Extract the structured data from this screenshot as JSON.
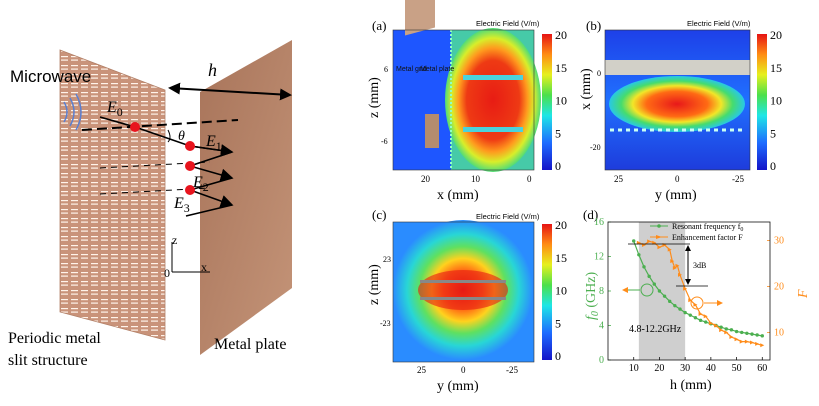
{
  "schematic": {
    "microwave_label": "Microwave",
    "h_label": "h",
    "e0": "E",
    "e0_sub": "0",
    "e1": "E",
    "e1_sub": "1",
    "e2": "E",
    "e2_sub": "2",
    "e3": "E",
    "e3_sub": "3",
    "theta": "θ",
    "axis_z": "z",
    "axis_x": "x",
    "origin": "0",
    "periodic_label_1": "Periodic metal",
    "periodic_label_2": "slit structure",
    "metal_plate_label": "Metal plate"
  },
  "panel_a": {
    "tag": "(a)",
    "colorbar_title": "Electric Field (V/m)",
    "colorbar_ticks": [
      "20",
      "15",
      "10",
      "5",
      "0"
    ],
    "ylabel": "z (mm)",
    "yticks": [
      "6",
      "-6"
    ],
    "xlabel": "x (mm)",
    "xticks": [
      "20",
      "10",
      "0"
    ],
    "inset_metal_grid": "Metal grid",
    "inset_metal_plate": "Metal plate"
  },
  "panel_b": {
    "tag": "(b)",
    "colorbar_title": "Electric Field (V/m)",
    "colorbar_ticks": [
      "20",
      "15",
      "10",
      "5",
      "0"
    ],
    "ylabel": "x (mm)",
    "yticks": [
      "0",
      "-20"
    ],
    "xlabel": "y (mm)",
    "xticks": [
      "25",
      "0",
      "-25"
    ]
  },
  "panel_c": {
    "tag": "(c)",
    "colorbar_title": "Electric Field (V/m)",
    "colorbar_ticks": [
      "20",
      "15",
      "10",
      "5",
      "0"
    ],
    "ylabel": "z (mm)",
    "yticks": [
      "23",
      "-23"
    ],
    "xlabel": "y (mm)",
    "xticks": [
      "25",
      "0",
      "-25"
    ]
  },
  "panel_d": {
    "tag": "(d)",
    "legend_1": "Resonant frequency f",
    "legend_1_sub": "0",
    "legend_2": "Enhancement factor F",
    "ylabel_left": "f",
    "ylabel_left_sub": "0",
    "ylabel_left_unit": " (GHz)",
    "ylabel_right": "F",
    "xlabel": "h (mm)",
    "annot_3db": "3dB",
    "annot_band": "4.8-12.2GHz"
  },
  "colors": {
    "plate": "#b98a6e",
    "freq_series": "#4caf50",
    "factor_series": "#ff8c1a",
    "shade": "#cfcfcf"
  },
  "chart_data": {
    "type": "line",
    "xlabel": "h (mm)",
    "ylabel_left": "f0 (GHz)",
    "ylabel_right": "F",
    "xlim": [
      0,
      63
    ],
    "ylim_left": [
      0,
      16
    ],
    "ylim_right": [
      4,
      34
    ],
    "xticks": [
      10,
      20,
      30,
      40,
      50,
      60
    ],
    "yticks_left": [
      0,
      4,
      8,
      12,
      16
    ],
    "yticks_right": [
      10,
      20,
      30
    ],
    "shaded_x": [
      12,
      30
    ],
    "series": [
      {
        "name": "Resonant frequency f0",
        "axis": "left",
        "x": [
          10,
          12,
          14,
          16,
          18,
          20,
          22,
          24,
          26,
          28,
          30,
          32,
          34,
          36,
          38,
          40,
          42,
          44,
          46,
          48,
          50,
          52,
          54,
          56,
          58,
          60
        ],
        "values": [
          13.8,
          12.2,
          10.8,
          9.7,
          8.8,
          8.0,
          7.4,
          6.8,
          6.3,
          5.9,
          5.5,
          5.2,
          4.9,
          4.6,
          4.4,
          4.2,
          4.0,
          3.8,
          3.6,
          3.5,
          3.3,
          3.2,
          3.1,
          3.0,
          2.9,
          2.8
        ]
      },
      {
        "name": "Enhancement factor F",
        "axis": "right",
        "x": [
          12,
          14,
          16,
          18,
          20,
          22,
          24,
          25,
          26,
          27,
          28,
          30,
          32,
          34,
          36,
          38,
          40,
          42,
          44,
          46,
          48,
          50,
          52,
          54,
          56,
          58,
          60
        ],
        "values": [
          29.5,
          29.0,
          29.8,
          29.5,
          28.5,
          29.0,
          28.0,
          25.5,
          24.0,
          24.5,
          22.5,
          19.5,
          17.0,
          16.0,
          14.0,
          13.5,
          12.0,
          11.5,
          10.5,
          10.0,
          9.0,
          8.5,
          8.0,
          8.0,
          7.8,
          7.5,
          7.2
        ]
      }
    ]
  }
}
